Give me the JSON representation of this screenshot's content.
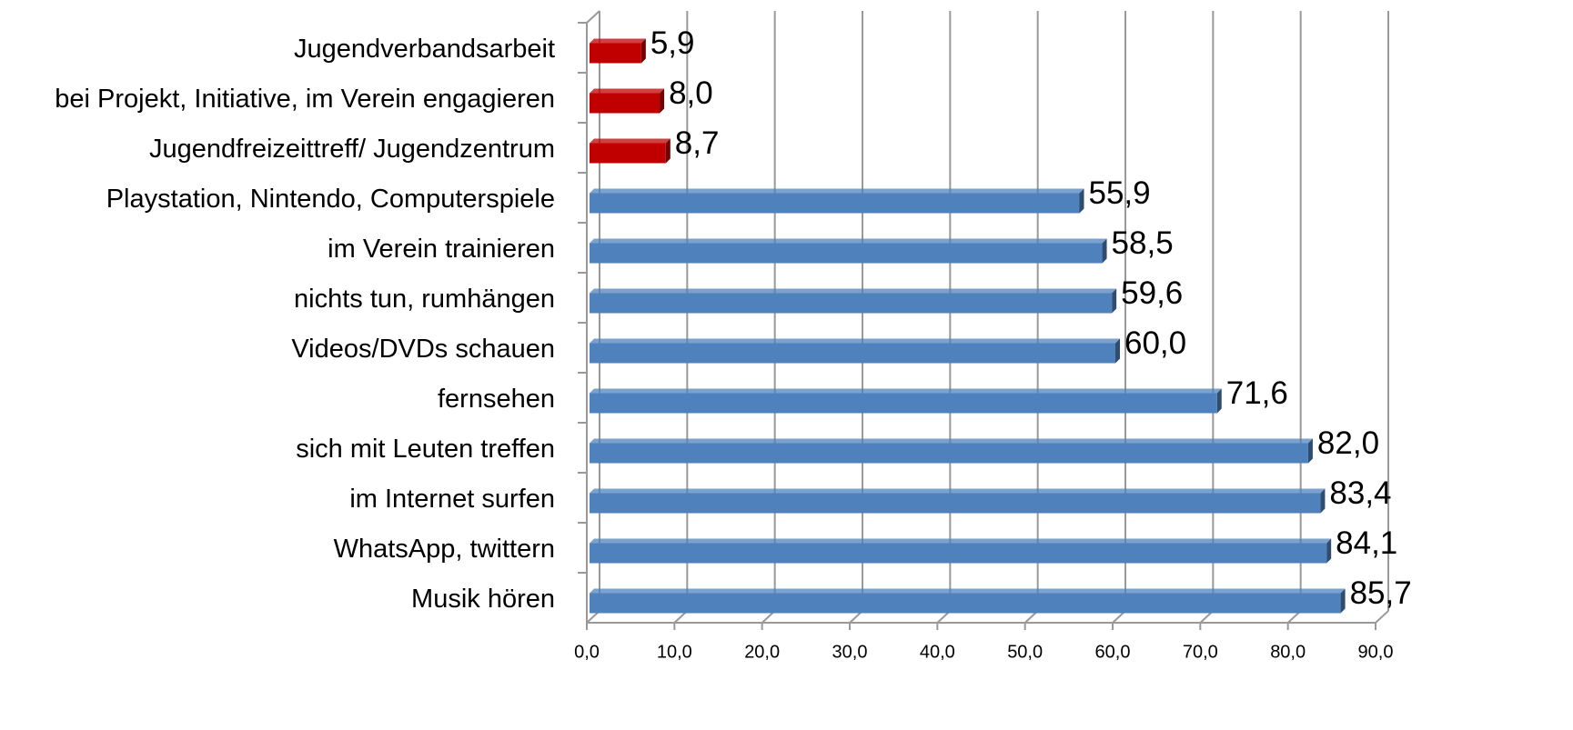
{
  "chart_data": {
    "type": "bar3d_horizontal",
    "categories": [
      "Jugendverbandsarbeit",
      "bei Projekt, Initiative, im Verein engagieren",
      "Jugendfreizeittreff/ Jugendzentrum",
      "Playstation, Nintendo, Computerspiele",
      "im Verein trainieren",
      "nichts tun, rumhängen",
      "Videos/DVDs  schauen",
      "fernsehen",
      "sich mit Leuten treffen",
      "im Internet surfen",
      "WhatsApp, twittern",
      "Musik hören"
    ],
    "values": [
      5.9,
      8.0,
      8.7,
      55.9,
      58.5,
      59.6,
      60.0,
      71.6,
      82.0,
      83.4,
      84.1,
      85.7
    ],
    "value_labels": [
      "5,9",
      "8,0",
      "8,7",
      "55,9",
      "58,5",
      "59,6",
      "60,0",
      "71,6",
      "82,0",
      "83,4",
      "84,1",
      "85,7"
    ],
    "colors": [
      "#c00000",
      "#c00000",
      "#c00000",
      "#4f81bd",
      "#4f81bd",
      "#4f81bd",
      "#4f81bd",
      "#4f81bd",
      "#4f81bd",
      "#4f81bd",
      "#4f81bd",
      "#4f81bd"
    ],
    "xlim": [
      0,
      90
    ],
    "xticks": [
      {
        "value": 0,
        "label": "0,0"
      },
      {
        "value": 10,
        "label": "10,0"
      },
      {
        "value": 20,
        "label": "20,0"
      },
      {
        "value": 30,
        "label": "30,0"
      },
      {
        "value": 40,
        "label": "40,0"
      },
      {
        "value": 50,
        "label": "50,0"
      },
      {
        "value": 60,
        "label": "60,0"
      },
      {
        "value": 70,
        "label": "70,0"
      },
      {
        "value": 80,
        "label": "80,0"
      },
      {
        "value": 90,
        "label": "90,0"
      }
    ],
    "grid": true
  }
}
